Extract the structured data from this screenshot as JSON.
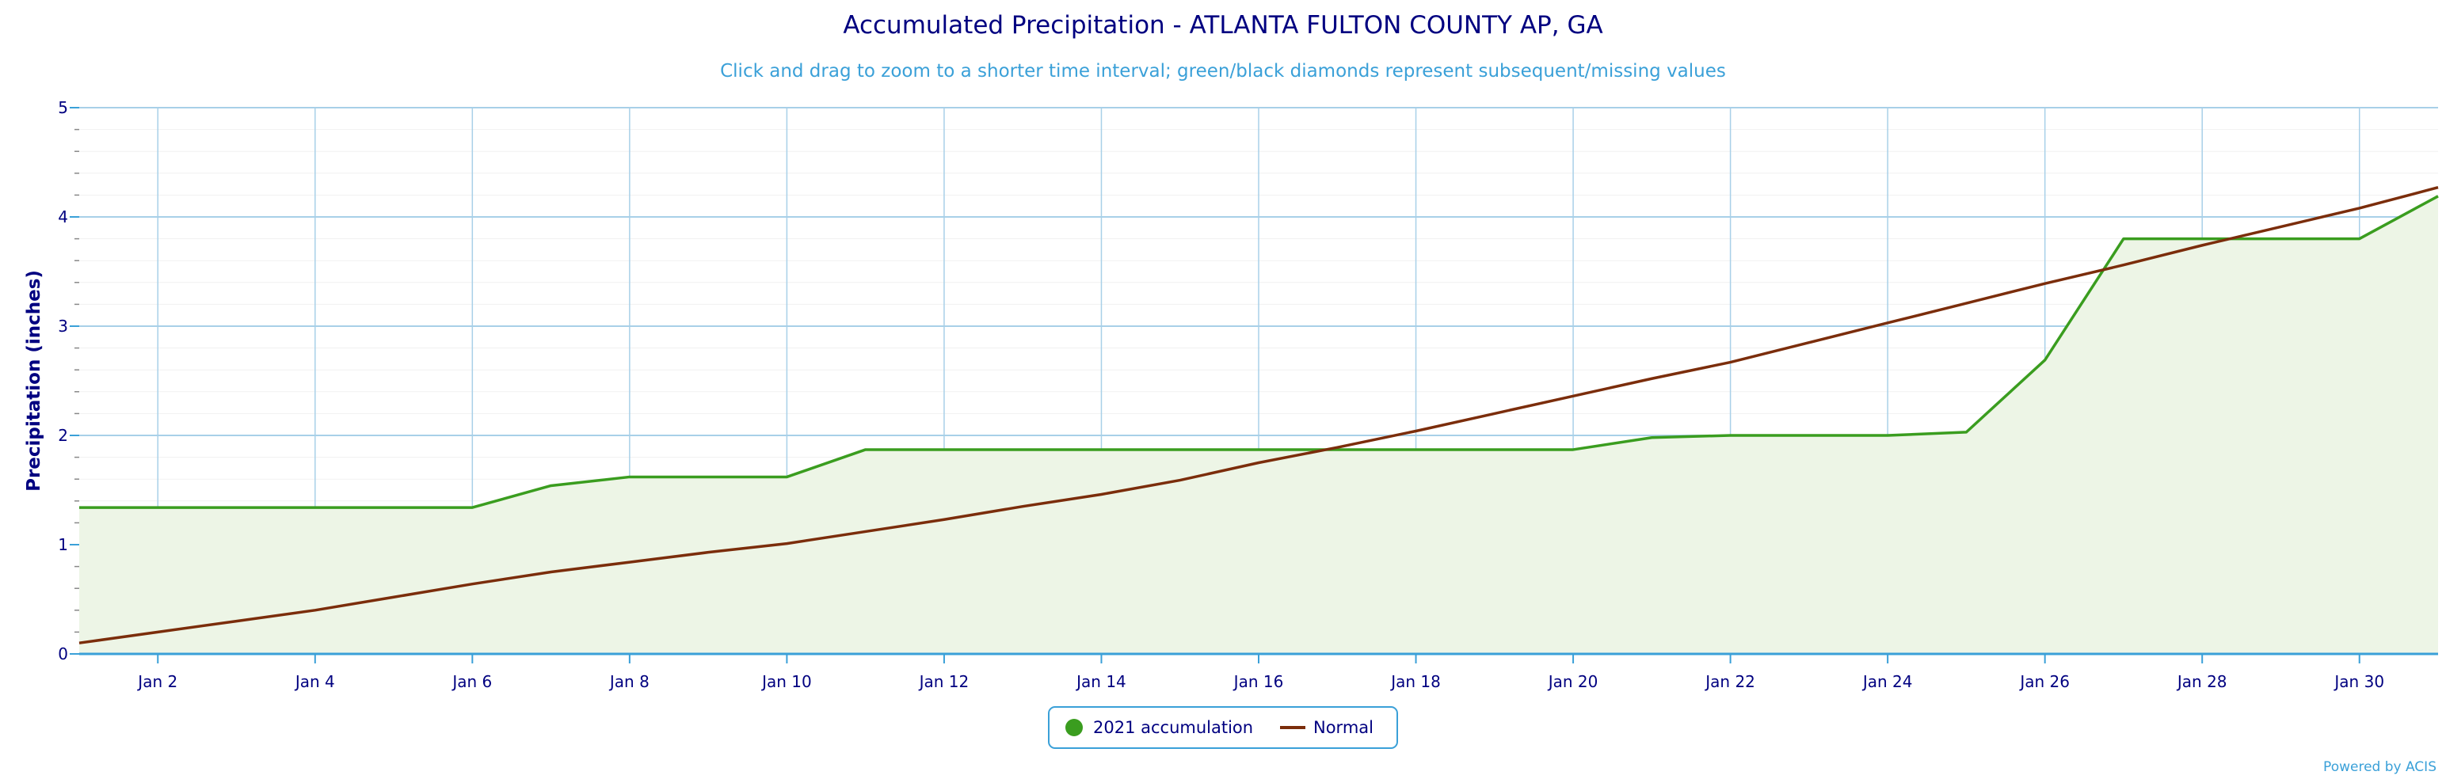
{
  "chart_data": {
    "type": "area",
    "title": "Accumulated Precipitation - ATLANTA FULTON COUNTY AP, GA",
    "subtitle": "Click and drag to zoom to a shorter time interval; green/black diamonds represent subsequent/missing values",
    "ylabel": "Precipitation (inches)",
    "xlabel": "",
    "ylim": [
      0,
      5
    ],
    "yticks": [
      0,
      1,
      2,
      3,
      4,
      5
    ],
    "xlim": [
      1,
      31
    ],
    "xticks": [
      2,
      4,
      6,
      8,
      10,
      12,
      14,
      16,
      18,
      20,
      22,
      24,
      26,
      28,
      30
    ],
    "xtick_labels": [
      "Jan 2",
      "Jan 4",
      "Jan 6",
      "Jan 8",
      "Jan 10",
      "Jan 12",
      "Jan 14",
      "Jan 16",
      "Jan 18",
      "Jan 20",
      "Jan 22",
      "Jan 24",
      "Jan 26",
      "Jan 28",
      "Jan 30"
    ],
    "grid": true,
    "legend_position": "bottom-center",
    "series": [
      {
        "name": "2021 accumulation",
        "color": "#3a9d1f",
        "fill": "#edf5e6",
        "x": [
          1,
          2,
          3,
          4,
          5,
          6,
          7,
          8,
          9,
          10,
          11,
          12,
          13,
          14,
          15,
          16,
          17,
          18,
          19,
          20,
          21,
          22,
          23,
          24,
          25,
          26,
          27,
          28,
          29,
          30,
          31
        ],
        "values": [
          1.34,
          1.34,
          1.34,
          1.34,
          1.34,
          1.34,
          1.54,
          1.62,
          1.62,
          1.62,
          1.87,
          1.87,
          1.87,
          1.87,
          1.87,
          1.87,
          1.87,
          1.87,
          1.87,
          1.87,
          1.98,
          2.0,
          2.0,
          2.0,
          2.03,
          2.69,
          3.8,
          3.8,
          3.8,
          3.8,
          4.19
        ]
      },
      {
        "name": "Normal",
        "color": "#7b2d0b",
        "x": [
          1,
          2,
          3,
          4,
          5,
          6,
          7,
          8,
          9,
          10,
          11,
          12,
          13,
          14,
          15,
          16,
          17,
          18,
          19,
          20,
          21,
          22,
          23,
          24,
          25,
          26,
          27,
          28,
          29,
          30,
          31
        ],
        "values": [
          0.1,
          0.2,
          0.3,
          0.4,
          0.52,
          0.64,
          0.75,
          0.84,
          0.93,
          1.01,
          1.12,
          1.23,
          1.35,
          1.46,
          1.59,
          1.75,
          1.89,
          2.04,
          2.2,
          2.36,
          2.52,
          2.67,
          2.85,
          3.03,
          3.21,
          3.39,
          3.56,
          3.74,
          3.91,
          4.08,
          4.27
        ]
      }
    ]
  },
  "credit": "Powered by ACIS"
}
